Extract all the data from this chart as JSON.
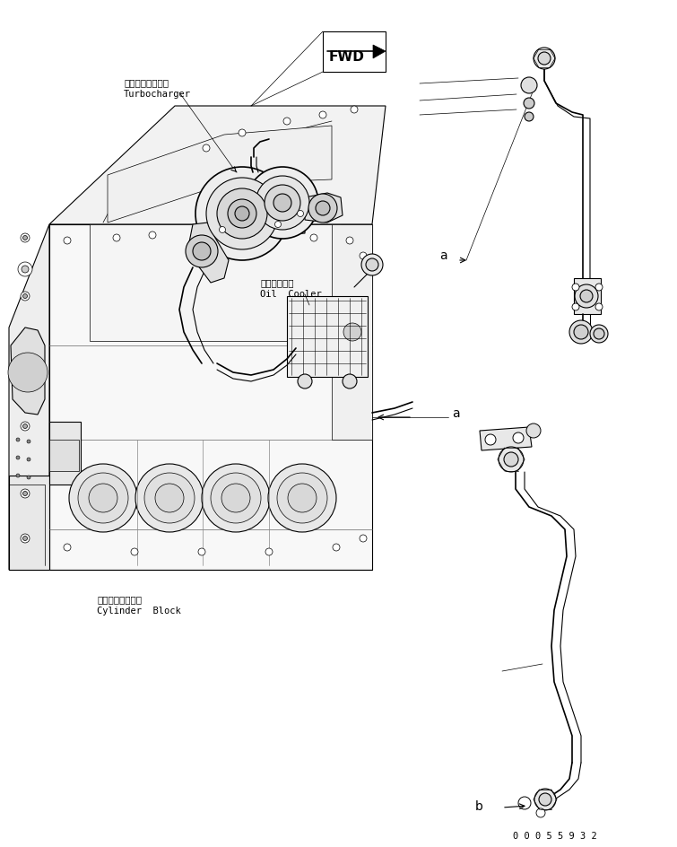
{
  "bg": "#ffffff",
  "lc": "#000000",
  "fw": 7.55,
  "fh": 9.44,
  "dpi": 100,
  "lw_main": 0.8,
  "lw_thick": 1.2,
  "lw_thin": 0.5,
  "jp_turbo": "ターボチャージャ",
  "en_turbo": "Turbocharger",
  "jp_oil": "オイルクーラ",
  "en_oil": "Oil  Cooler",
  "jp_cyl": "シリンダブロック",
  "en_cyl": "Cylinder  Block",
  "fwd": "FWD",
  "la": "a",
  "lb": "b",
  "pn": "0 0 0 5 5 9 3 2"
}
